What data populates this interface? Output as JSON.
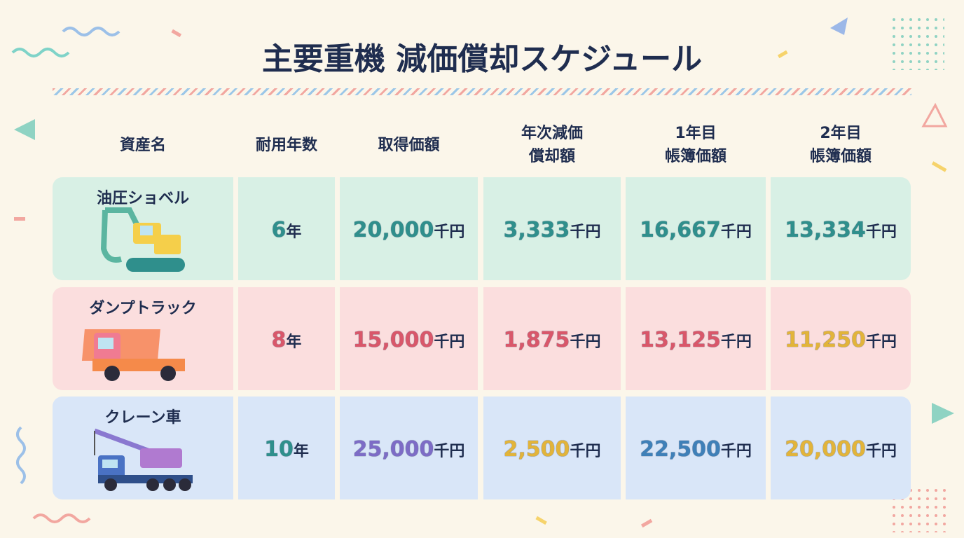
{
  "title": "主要重機 減価償却スケジュール",
  "table": {
    "headers": [
      [
        "資産名"
      ],
      [
        "耐用年数"
      ],
      [
        "取得価額"
      ],
      [
        "年次減価",
        "償却額"
      ],
      [
        "1年目",
        "帳簿価額"
      ],
      [
        "2年目",
        "帳簿価額"
      ]
    ],
    "rows": [
      {
        "name": "油圧ショベル",
        "background": "#d8f0e5",
        "cells": [
          {
            "value": "6",
            "unit": "年",
            "color": "#2f8f8c"
          },
          {
            "value": "20,000",
            "unit": "千円",
            "color": "#2f8f8c"
          },
          {
            "value": "3,333",
            "unit": "千円",
            "color": "#2f8f8c"
          },
          {
            "value": "16,667",
            "unit": "千円",
            "color": "#2f8f8c"
          },
          {
            "value": "13,334",
            "unit": "千円",
            "color": "#2f8f8c"
          }
        ]
      },
      {
        "name": "ダンプトラック",
        "background": "#fbdede",
        "cells": [
          {
            "value": "8",
            "unit": "年",
            "color": "#d9576a"
          },
          {
            "value": "15,000",
            "unit": "千円",
            "color": "#d9576a"
          },
          {
            "value": "1,875",
            "unit": "千円",
            "color": "#d9576a"
          },
          {
            "value": "13,125",
            "unit": "千円",
            "color": "#d9576a"
          },
          {
            "value": "11,250",
            "unit": "千円",
            "color": "#e2b43a"
          }
        ]
      },
      {
        "name": "クレーン車",
        "background": "#d9e6f8",
        "cells": [
          {
            "value": "10",
            "unit": "年",
            "color": "#2f8f8c"
          },
          {
            "value": "25,000",
            "unit": "千円",
            "color": "#7d6cc6"
          },
          {
            "value": "2,500",
            "unit": "千円",
            "color": "#e2b43a"
          },
          {
            "value": "22,500",
            "unit": "千円",
            "color": "#3f80b8"
          },
          {
            "value": "20,000",
            "unit": "千円",
            "color": "#e2b43a"
          }
        ]
      }
    ]
  }
}
